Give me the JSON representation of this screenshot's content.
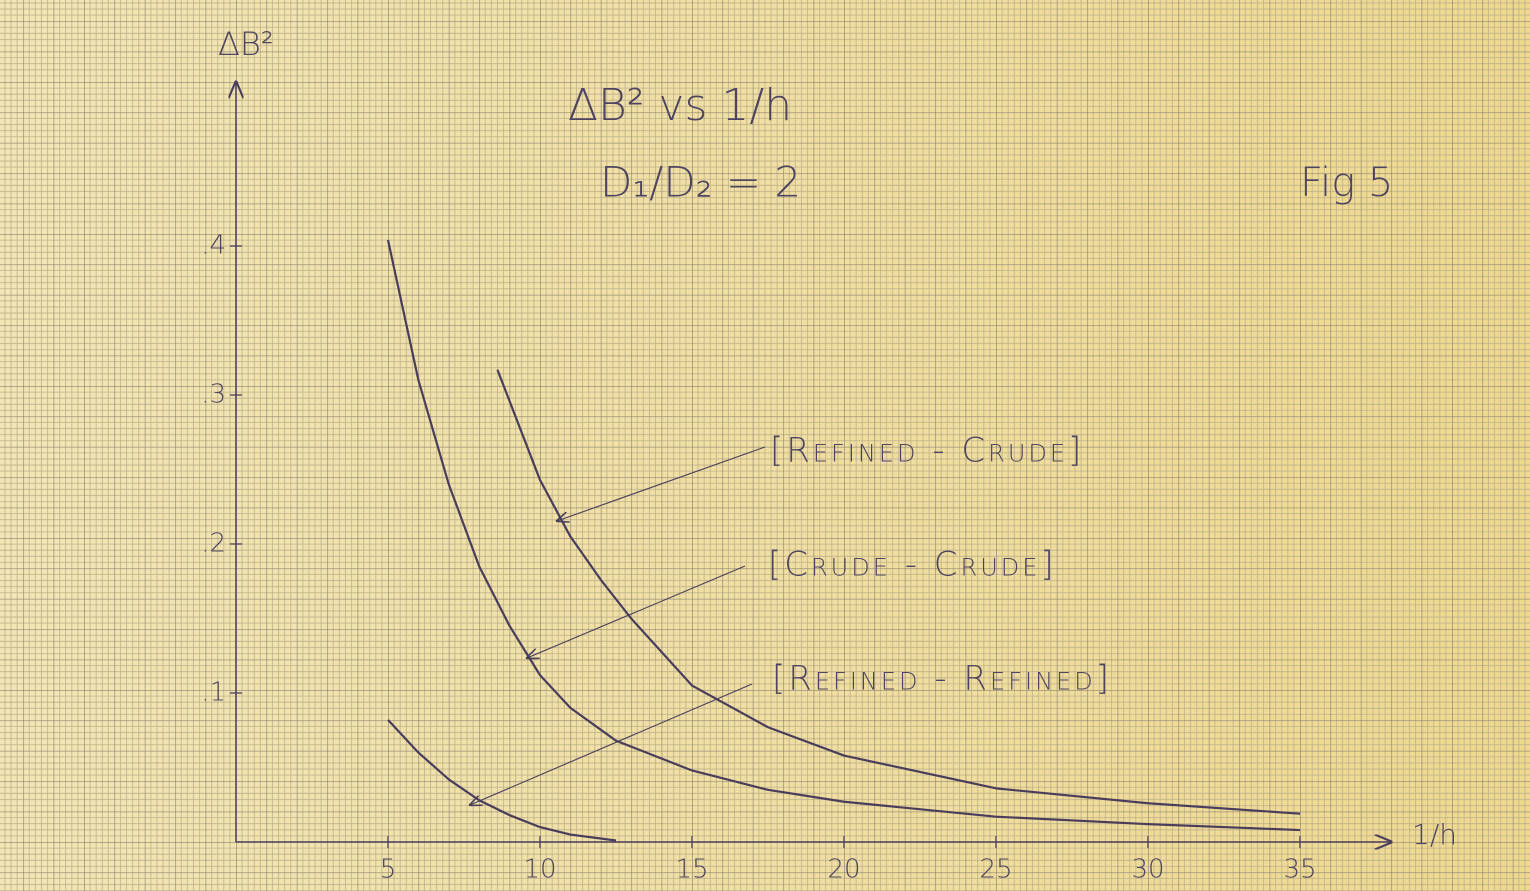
{
  "chart_data": {
    "type": "line",
    "title": "ΔB² vs 1/h",
    "subtitle": "D₁/D₂ = 2",
    "figure_label": "Fig 5",
    "y_label": "ΔB²",
    "x_label": "1/h",
    "xlim": [
      0,
      38
    ],
    "ylim": [
      0,
      0.51
    ],
    "xticks": [
      5,
      10,
      15,
      20,
      25,
      30,
      35
    ],
    "yticks": [
      {
        "value": 0.1,
        "label": ".1"
      },
      {
        "value": 0.2,
        "label": ".2"
      },
      {
        "value": 0.3,
        "label": ".3"
      },
      {
        "value": 0.4,
        "label": ".4"
      }
    ],
    "series": [
      {
        "name": "[Refined - Crude]",
        "color": "#4a3d5c",
        "x": [
          8.6,
          10,
          11,
          12,
          13,
          15,
          17.5,
          20,
          25,
          30,
          35
        ],
        "values": [
          0.317,
          0.243,
          0.205,
          0.176,
          0.15,
          0.105,
          0.077,
          0.058,
          0.036,
          0.026,
          0.019
        ]
      },
      {
        "name": "[Crude - Crude]",
        "color": "#4a3d5c",
        "x": [
          5,
          6,
          7,
          8,
          9,
          10,
          11,
          12.5,
          15,
          17.5,
          20,
          25,
          30,
          35
        ],
        "values": [
          0.404,
          0.31,
          0.24,
          0.185,
          0.145,
          0.112,
          0.09,
          0.068,
          0.048,
          0.035,
          0.027,
          0.017,
          0.012,
          0.008
        ]
      },
      {
        "name": "[Refined - Refined]",
        "color": "#4a3d5c",
        "x": [
          5,
          6,
          7,
          8,
          9,
          10,
          11,
          12.5
        ],
        "values": [
          0.082,
          0.06,
          0.042,
          0.028,
          0.018,
          0.01,
          0.005,
          0.001
        ]
      }
    ]
  }
}
